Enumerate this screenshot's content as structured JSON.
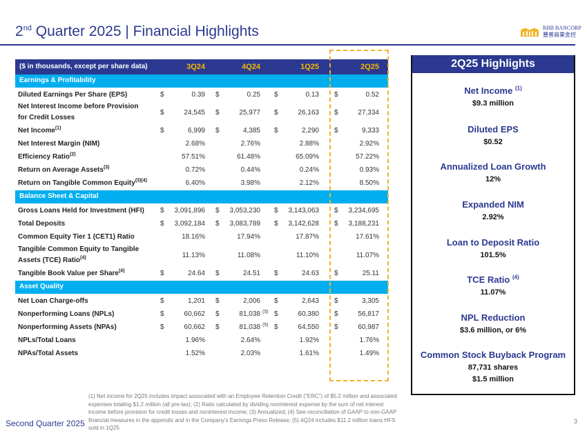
{
  "title": {
    "main": "2",
    "sup": "nd",
    "rest": " Quarter 2025 | Financial Highlights"
  },
  "logo": {
    "name": "RBB BANCORP",
    "chinese": "豐普商業金控"
  },
  "table": {
    "header": "($ in thousands, except per share data)",
    "columns": [
      "3Q24",
      "4Q24",
      "1Q25",
      "2Q25"
    ],
    "sections": [
      {
        "title": "Earnings & Profitability",
        "rows": [
          {
            "label": "Diluted Earnings Per Share (EPS)",
            "dollar": true,
            "values": [
              "0.39",
              "0.25",
              "0.13",
              "0.52"
            ]
          },
          {
            "label": "Net Interest Income before Provision",
            "label2": "for Credit Losses",
            "dollar": true,
            "values": [
              "24,545",
              "25,977",
              "26,163",
              "27,334"
            ]
          },
          {
            "label": "Net Income",
            "note": "(1)",
            "dollar": true,
            "values": [
              "6,999",
              "4,385",
              "2,290",
              "9,333"
            ]
          },
          {
            "label": "Net Interest Margin (NIM)",
            "values": [
              "2.68%",
              "2.76%",
              "2.88%",
              "2.92%"
            ]
          },
          {
            "label": "Efficiency Ratio",
            "note": "(2)",
            "values": [
              "57.51%",
              "61.48%",
              "65.09%",
              "57.22%"
            ]
          },
          {
            "label": "Return on Average Assets",
            "note": "(3)",
            "values": [
              "0.72%",
              "0.44%",
              "0.24%",
              "0.93%"
            ]
          },
          {
            "label": "Return on Tangible Common Equity",
            "note": "(3)(4)",
            "values": [
              "6.40%",
              "3.98%",
              "2.12%",
              "8.50%"
            ]
          }
        ]
      },
      {
        "title": "Balance Sheet & Capital",
        "rows": [
          {
            "label": "Gross Loans Held for Investment (HFI)",
            "dollar": true,
            "values": [
              "3,091,896",
              "3,053,230",
              "3,143,063",
              "3,234,695"
            ]
          },
          {
            "label": "Total Deposits",
            "dollar": true,
            "values": [
              "3,092,184",
              "3,083,789",
              "3,142,628",
              "3,188,231"
            ]
          },
          {
            "label": "Common Equity Tier 1 (CET1) Ratio",
            "values": [
              "18.16%",
              "17.94%",
              "17.87%",
              "17.61%"
            ]
          },
          {
            "label": "Tangible Common Equity to Tangible",
            "label2": "Assets (TCE) Ratio",
            "note": "(4)",
            "values": [
              "11.13%",
              "11.08%",
              "11.10%",
              "11.07%"
            ]
          },
          {
            "label": "Tangible Book Value per Share",
            "note": "(4)",
            "dollar": true,
            "values": [
              "24.64",
              "24.51",
              "24.63",
              "25.11"
            ]
          }
        ]
      },
      {
        "title": "Asset Quality",
        "rows": [
          {
            "label": "Net Loan Charge-offs",
            "dollar": true,
            "values": [
              "1,201",
              "2,006",
              "2,643",
              "3,305"
            ]
          },
          {
            "label": "Nonperforming Loans (NPLs)",
            "dollar": true,
            "values": [
              "60,662",
              "81,038",
              "60,380",
              "56,817"
            ],
            "vnote": "(5)"
          },
          {
            "label": "Nonperforming Assets (NPAs)",
            "dollar": true,
            "values": [
              "60,662",
              "81,038",
              "64,550",
              "60,987"
            ],
            "vnote": "(5)"
          },
          {
            "label": "NPLs/Total Loans",
            "values": [
              "1.96%",
              "2.64%",
              "1.92%",
              "1.76%"
            ]
          },
          {
            "label": "NPAs/Total Assets",
            "values": [
              "1.52%",
              "2.03%",
              "1.61%",
              "1.49%"
            ]
          }
        ]
      }
    ]
  },
  "highlights": {
    "title": "2Q25 Highlights",
    "items": [
      {
        "label": "Net Income",
        "note": "(1)",
        "values": [
          "$9.3 million"
        ]
      },
      {
        "label": "Diluted EPS",
        "values": [
          "$0.52"
        ]
      },
      {
        "label": "Annualized Loan Growth",
        "values": [
          "12%"
        ]
      },
      {
        "label": "Expanded NIM",
        "values": [
          "2.92%"
        ]
      },
      {
        "label": "Loan to Deposit Ratio",
        "values": [
          "101.5%"
        ]
      },
      {
        "label": "TCE Ratio",
        "note": "(4)",
        "values": [
          "11.07%"
        ]
      },
      {
        "label": "NPL Reduction",
        "values": [
          "$3.6 million, or 6%"
        ]
      },
      {
        "label": "Common Stock Buyback Program",
        "values": [
          "87,731 shares",
          "$1.5 million"
        ]
      }
    ]
  },
  "footnote": "(1) Net income for 2Q25 includes impact associated with an Employee Retention Credit (\"ERC\") of $5.2 million and associated expenses totaling $1.2 million (all pre-tax); (2) Ratio calculated by dividing noninterest expense by the sum of net interest income before provision for credit losses and noninterest income; (3) Annualized; (4) See reconciliation of GAAP to non-GAAP financial measures in the appendix and in the Company's Earnings Press Release; (5) 4Q24 includes $11.2 million loans HFS sold in 1Q25",
  "footer": {
    "left": "Second Quarter 2025",
    "page": "3"
  }
}
